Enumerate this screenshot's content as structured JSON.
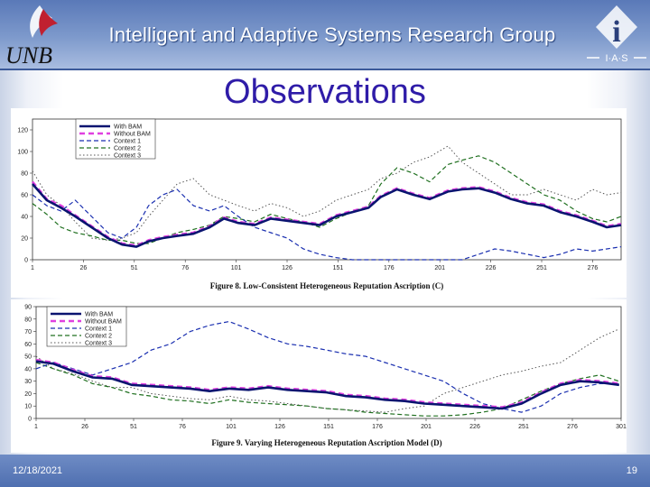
{
  "header": {
    "title": "Intelligent and Adaptive Systems Research Group",
    "left_logo_text": "UNB",
    "right_logo_letter": "i",
    "right_logo_text": "I·A·S"
  },
  "slide": {
    "title": "Observations"
  },
  "footer": {
    "date": "12/18/2021",
    "page": "19"
  },
  "colors": {
    "header": "#6f8cc5",
    "title": "#2f1ca8",
    "with_bam": "#0a1470",
    "without_bam": "#e040e0",
    "context1": "#1a2fb0",
    "context2": "#207020",
    "context3": "#555555"
  },
  "chart_data": [
    {
      "type": "line",
      "caption": "Figure 8. Low-Consistent Heterogeneous Reputation Ascription (C)",
      "ylim": [
        0,
        130
      ],
      "yticks": [
        0,
        20,
        40,
        60,
        80,
        100,
        120
      ],
      "xlim": [
        1,
        290
      ],
      "xticks": [
        1,
        26,
        51,
        76,
        101,
        126,
        151,
        176,
        201,
        226,
        251,
        276
      ],
      "x": [
        1,
        8,
        15,
        22,
        30,
        38,
        45,
        52,
        58,
        65,
        72,
        80,
        88,
        95,
        102,
        110,
        118,
        126,
        134,
        142,
        150,
        158,
        166,
        172,
        180,
        188,
        196,
        205,
        212,
        220,
        228,
        236,
        244,
        252,
        260,
        268,
        276,
        283,
        290
      ],
      "series": [
        {
          "name": "With BAM",
          "style": "solid",
          "values": [
            70,
            55,
            48,
            40,
            30,
            20,
            14,
            12,
            17,
            20,
            22,
            24,
            30,
            38,
            34,
            32,
            38,
            36,
            34,
            32,
            40,
            44,
            48,
            58,
            65,
            60,
            56,
            63,
            65,
            66,
            62,
            56,
            52,
            50,
            44,
            40,
            35,
            30,
            32
          ]
        },
        {
          "name": "Without BAM",
          "style": "dashed",
          "values": [
            72,
            56,
            50,
            41,
            31,
            21,
            15,
            13,
            18,
            21,
            23,
            25,
            31,
            39,
            35,
            33,
            39,
            37,
            35,
            33,
            41,
            45,
            49,
            59,
            66,
            61,
            57,
            64,
            66,
            67,
            63,
            57,
            53,
            51,
            45,
            41,
            36,
            31,
            33
          ]
        },
        {
          "name": "Context 1",
          "style": "dashed",
          "values": [
            60,
            50,
            45,
            55,
            40,
            25,
            20,
            30,
            50,
            60,
            65,
            50,
            45,
            50,
            40,
            30,
            25,
            20,
            10,
            5,
            2,
            0,
            0,
            0,
            0,
            0,
            0,
            0,
            0,
            5,
            10,
            8,
            5,
            2,
            5,
            10,
            8,
            10,
            12
          ]
        },
        {
          "name": "Context 2",
          "style": "dashed",
          "values": [
            52,
            42,
            30,
            25,
            22,
            18,
            18,
            15,
            15,
            20,
            25,
            28,
            32,
            40,
            38,
            35,
            42,
            38,
            35,
            30,
            38,
            44,
            50,
            70,
            85,
            80,
            72,
            88,
            92,
            96,
            90,
            80,
            70,
            60,
            55,
            45,
            38,
            35,
            40
          ]
        },
        {
          "name": "Context 3",
          "style": "dotted",
          "values": [
            82,
            60,
            50,
            35,
            20,
            18,
            20,
            25,
            40,
            55,
            70,
            75,
            60,
            55,
            50,
            45,
            52,
            48,
            40,
            45,
            55,
            60,
            65,
            75,
            80,
            90,
            95,
            105,
            90,
            80,
            70,
            60,
            60,
            65,
            60,
            55,
            65,
            60,
            62
          ]
        }
      ]
    },
    {
      "type": "line",
      "caption": "Figure 9. Varying Heterogeneous Reputation Ascription Model (D)",
      "ylim": [
        0,
        90
      ],
      "yticks": [
        0,
        10,
        20,
        30,
        40,
        50,
        60,
        70,
        80,
        90
      ],
      "xlim": [
        1,
        301
      ],
      "xticks": [
        1,
        26,
        51,
        76,
        101,
        126,
        151,
        176,
        201,
        226,
        251,
        276,
        301
      ],
      "x": [
        1,
        10,
        20,
        30,
        40,
        50,
        60,
        70,
        80,
        90,
        100,
        110,
        120,
        130,
        140,
        150,
        160,
        170,
        180,
        190,
        200,
        210,
        220,
        230,
        240,
        250,
        260,
        270,
        280,
        290,
        300
      ],
      "series": [
        {
          "name": "With BAM",
          "style": "solid",
          "values": [
            46,
            44,
            38,
            33,
            32,
            27,
            26,
            25,
            24,
            22,
            24,
            23,
            25,
            23,
            22,
            21,
            18,
            17,
            15,
            14,
            12,
            11,
            10,
            9,
            8,
            12,
            20,
            27,
            30,
            29,
            27
          ]
        },
        {
          "name": "Without BAM",
          "style": "dashed",
          "values": [
            47,
            45,
            39,
            34,
            33,
            28,
            27,
            26,
            25,
            23,
            25,
            24,
            26,
            24,
            23,
            22,
            19,
            18,
            16,
            15,
            13,
            12,
            11,
            10,
            9,
            13,
            21,
            28,
            31,
            30,
            28
          ]
        },
        {
          "name": "Context 1",
          "style": "dashed",
          "values": [
            40,
            45,
            40,
            35,
            40,
            45,
            55,
            60,
            70,
            75,
            78,
            72,
            65,
            60,
            58,
            55,
            52,
            50,
            45,
            40,
            35,
            30,
            20,
            12,
            8,
            5,
            10,
            20,
            25,
            28,
            28
          ]
        },
        {
          "name": "Context 2",
          "style": "dashed",
          "values": [
            45,
            40,
            35,
            28,
            25,
            20,
            18,
            15,
            14,
            12,
            15,
            13,
            12,
            11,
            10,
            8,
            7,
            5,
            4,
            3,
            2,
            2,
            3,
            5,
            8,
            15,
            22,
            28,
            32,
            35,
            30
          ]
        },
        {
          "name": "Context 3",
          "style": "dotted",
          "values": [
            50,
            40,
            36,
            30,
            25,
            25,
            20,
            18,
            16,
            15,
            18,
            15,
            14,
            12,
            10,
            8,
            7,
            6,
            5,
            8,
            10,
            20,
            25,
            30,
            35,
            38,
            42,
            45,
            55,
            65,
            72
          ]
        }
      ]
    }
  ]
}
